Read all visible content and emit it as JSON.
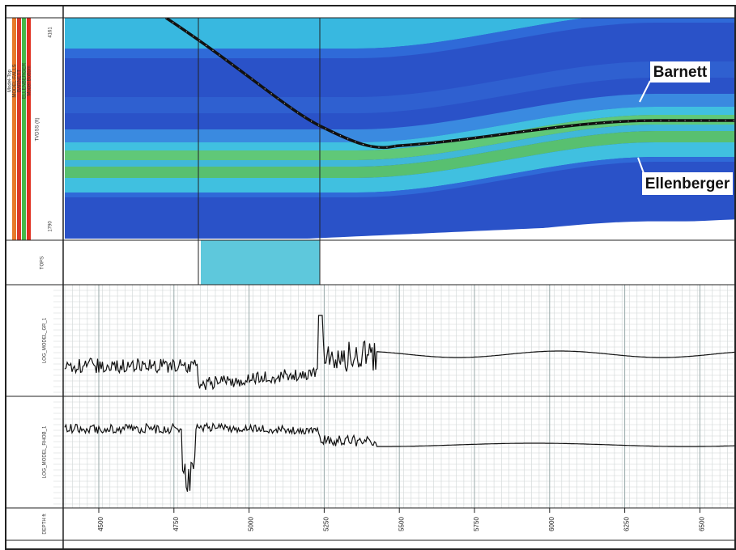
{
  "annotations": {
    "barnett": "Barnett",
    "ellenberger": "Ellenberger"
  },
  "model_track": {
    "labels": [
      "Model-Top",
      "MODEL-FALLS",
      "BARNETT",
      "ELLENBERGER",
      "Model-Bottom",
      "TVDSS (ft)"
    ],
    "top_value": "4161",
    "bottom_value": "1790"
  },
  "tops_track": {
    "label": "TOPS"
  },
  "log_tracks": [
    {
      "label": "LOG_MODEL_GR_1"
    },
    {
      "label": "LOG_MODEL_RHOB_1"
    }
  ],
  "depth_axis": {
    "label": "DEPTH ft",
    "ticks": [
      4500,
      4750,
      5000,
      5250,
      5500,
      5750,
      6000,
      6250,
      6500
    ]
  }
}
